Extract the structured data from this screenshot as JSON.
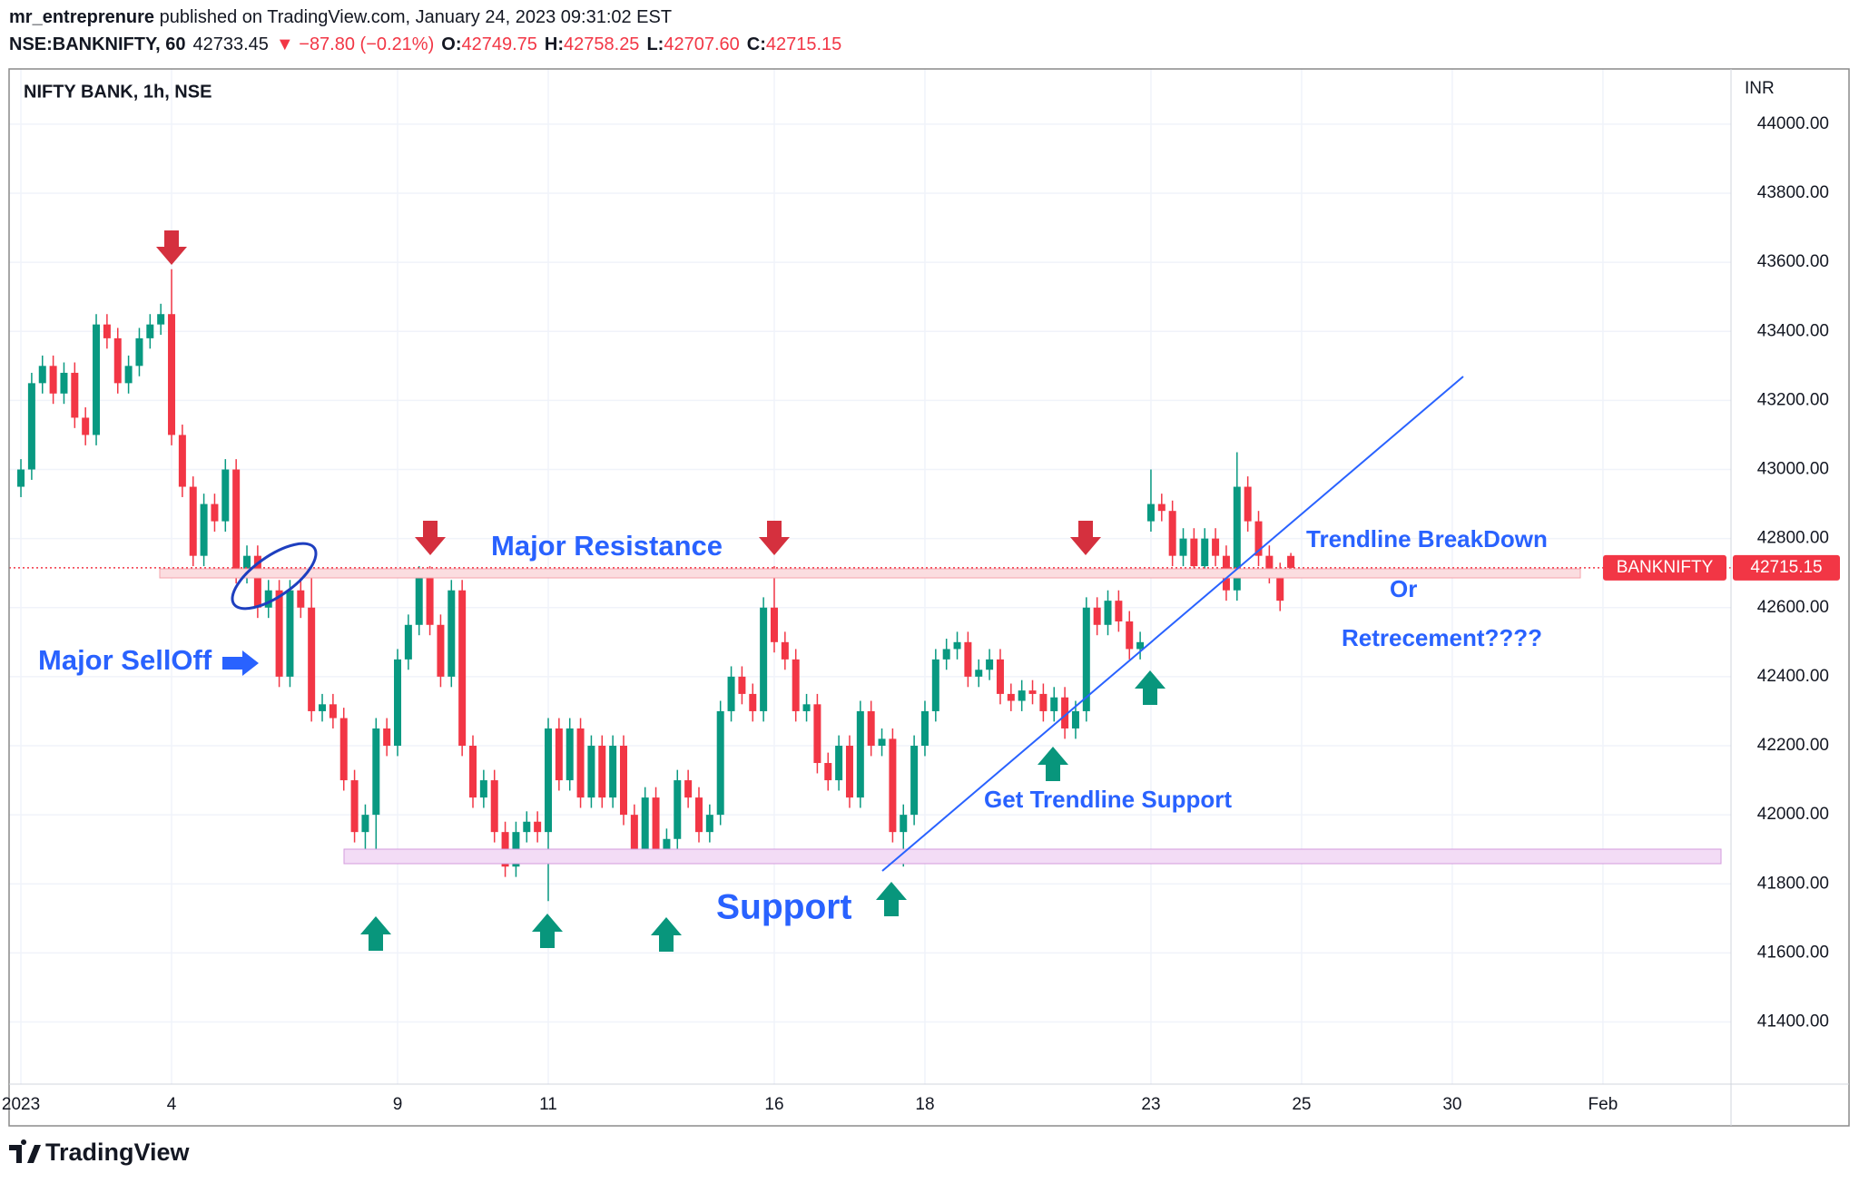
{
  "header": {
    "publisher": "mr_entreprenure",
    "published": " published on TradingView.com, January 24, 2023 09:31:02 EST",
    "symbol": "NSE:BANKNIFTY, 60",
    "price": "42733.45",
    "change": "▼ −87.80 (−0.21%)",
    "o_label": "O:",
    "o": "42749.75",
    "h_label": "H:",
    "h": "42758.25",
    "l_label": "L:",
    "l": "42707.60",
    "c_label": "C:",
    "c": "42715.15"
  },
  "footer": {
    "logo": "TradingView"
  },
  "chart_data": {
    "type": "candlestick",
    "title": "NIFTY BANK, 1h, NSE",
    "y_axis_label": "INR",
    "up_color": "#089981",
    "down_color": "#f23645",
    "grid": true,
    "open": [
      42950,
      43000,
      43250,
      43300,
      43220,
      43280,
      43150,
      43100,
      43420,
      43380,
      43250,
      43300,
      43380,
      43420,
      43450,
      43100,
      42950,
      42750,
      42900,
      42850,
      43000,
      42700,
      42750,
      42600,
      42650,
      42400,
      42650,
      42600,
      42300,
      42320,
      42280,
      42100,
      41950,
      42000,
      42250,
      42200,
      42450,
      42550,
      42700,
      42550,
      42400,
      42650,
      42200,
      42050,
      42100,
      41950,
      41850,
      41950,
      41980,
      41950,
      42250,
      42100,
      42250,
      42050,
      42200,
      42050,
      42200,
      42000,
      41900,
      42050,
      41900,
      41930,
      42100,
      42050,
      41950,
      42000,
      42300,
      42400,
      42350,
      42300,
      42600,
      42500,
      42450,
      42300,
      42320,
      42150,
      42100,
      42200,
      42050,
      42300,
      42200,
      42220,
      41950,
      42000,
      42200,
      42300,
      42450,
      42480,
      42500,
      42400,
      42420,
      42450,
      42350,
      42330,
      42360,
      42350,
      42300,
      42340,
      42250,
      42300,
      42600,
      42550,
      42620,
      42560,
      42480,
      42850,
      42900,
      42880,
      42750,
      42800,
      42720,
      42800,
      42750,
      42650,
      42950,
      42850,
      42750,
      42700,
      42749.75
    ],
    "high": [
      43030,
      43280,
      43330,
      43330,
      43310,
      43310,
      43180,
      43450,
      43450,
      43410,
      43330,
      43410,
      43450,
      43480,
      43580,
      43130,
      42980,
      42930,
      42930,
      43030,
      43030,
      42780,
      42780,
      42680,
      42680,
      42680,
      42680,
      42700,
      42350,
      42350,
      42310,
      42130,
      42030,
      42280,
      42280,
      42480,
      42580,
      42720,
      42720,
      42580,
      42680,
      42680,
      42230,
      42130,
      42130,
      41980,
      41980,
      42010,
      42010,
      42280,
      42280,
      42280,
      42280,
      42230,
      42230,
      42230,
      42230,
      42030,
      42080,
      42080,
      41960,
      42130,
      42130,
      42080,
      42030,
      42330,
      42430,
      42430,
      42380,
      42630,
      42720,
      42530,
      42480,
      42350,
      42350,
      42180,
      42230,
      42230,
      42330,
      42330,
      42250,
      42250,
      42030,
      42230,
      42330,
      42480,
      42510,
      42530,
      42530,
      42450,
      42480,
      42480,
      42380,
      42390,
      42390,
      42380,
      42370,
      42370,
      42330,
      42630,
      42630,
      42650,
      42650,
      42590,
      42530,
      43000,
      42930,
      42910,
      42830,
      42830,
      42830,
      42830,
      42780,
      43050,
      42980,
      42880,
      42780,
      42730,
      42758.25
    ],
    "low": [
      42920,
      42970,
      43220,
      43190,
      43190,
      43120,
      43070,
      43070,
      43350,
      43220,
      43220,
      43270,
      43350,
      43390,
      43070,
      42920,
      42720,
      42720,
      42820,
      42820,
      42670,
      42670,
      42570,
      42570,
      42370,
      42370,
      42570,
      42270,
      42270,
      42250,
      42070,
      41920,
      41880,
      41870,
      42170,
      42170,
      42420,
      42520,
      42520,
      42370,
      42370,
      42170,
      42020,
      42020,
      41920,
      41820,
      41820,
      41920,
      41920,
      41750,
      42070,
      42070,
      42020,
      42020,
      42020,
      42020,
      41970,
      41870,
      41870,
      41870,
      41870,
      41900,
      42020,
      41920,
      41920,
      41970,
      42270,
      42320,
      42270,
      42270,
      42470,
      42420,
      42270,
      42270,
      42120,
      42070,
      42070,
      42020,
      42020,
      42170,
      42170,
      41920,
      41850,
      41970,
      42170,
      42270,
      42420,
      42450,
      42370,
      42370,
      42390,
      42320,
      42300,
      42300,
      42320,
      42270,
      42270,
      42220,
      42220,
      42270,
      42520,
      42520,
      42530,
      42450,
      42450,
      42820,
      42850,
      42720,
      42720,
      42690,
      42690,
      42720,
      42620,
      42620,
      42820,
      42720,
      42670,
      42590,
      42707.6
    ],
    "close": [
      43000,
      43250,
      43300,
      43220,
      43280,
      43150,
      43100,
      43420,
      43380,
      43250,
      43300,
      43380,
      43420,
      43450,
      43100,
      42950,
      42750,
      42900,
      42850,
      43000,
      42700,
      42750,
      42600,
      42650,
      42400,
      42650,
      42600,
      42300,
      42320,
      42280,
      42100,
      41950,
      42000,
      42250,
      42200,
      42450,
      42550,
      42700,
      42550,
      42400,
      42650,
      42200,
      42050,
      42100,
      41950,
      41850,
      41950,
      41980,
      41950,
      42250,
      42100,
      42250,
      42050,
      42200,
      42050,
      42200,
      42000,
      41900,
      42050,
      41900,
      41930,
      42100,
      42050,
      41950,
      42000,
      42300,
      42400,
      42350,
      42300,
      42600,
      42500,
      42450,
      42300,
      42320,
      42150,
      42100,
      42200,
      42050,
      42300,
      42200,
      42220,
      41950,
      42000,
      42200,
      42300,
      42450,
      42480,
      42500,
      42400,
      42420,
      42450,
      42350,
      42330,
      42360,
      42350,
      42300,
      42340,
      42250,
      42300,
      42600,
      42550,
      42620,
      42560,
      42480,
      42500,
      42900,
      42880,
      42750,
      42800,
      42720,
      42800,
      42750,
      42650,
      42950,
      42850,
      42750,
      42700,
      42620,
      42715.15
    ],
    "xlim": [
      -1.1,
      158.9
    ],
    "xticks": [
      {
        "value": 0,
        "label": "2023"
      },
      {
        "value": 14,
        "label": "4"
      },
      {
        "value": 35,
        "label": "9"
      },
      {
        "value": 49,
        "label": "11"
      },
      {
        "value": 70,
        "label": "16"
      },
      {
        "value": 84,
        "label": "18"
      },
      {
        "value": 105,
        "label": "23"
      },
      {
        "value": 119,
        "label": "25"
      },
      {
        "value": 133,
        "label": "30"
      },
      {
        "value": 147,
        "label": "Feb"
      }
    ],
    "ylim": [
      41220,
      44160
    ],
    "yticks": [
      {
        "value": 41400,
        "label": "41400.00"
      },
      {
        "value": 41600,
        "label": "41600.00"
      },
      {
        "value": 41800,
        "label": "41800.00"
      },
      {
        "value": 42000,
        "label": "42000.00"
      },
      {
        "value": 42200,
        "label": "42200.00"
      },
      {
        "value": 42400,
        "label": "42400.00"
      },
      {
        "value": 42600,
        "label": "42600.00"
      },
      {
        "value": 42800,
        "label": "42800.00"
      },
      {
        "value": 43000,
        "label": "43000.00"
      },
      {
        "value": 43200,
        "label": "43200.00"
      },
      {
        "value": 43400,
        "label": "43400.00"
      },
      {
        "value": 43600,
        "label": "43600.00"
      },
      {
        "value": 43800,
        "label": "43800.00"
      },
      {
        "value": 44000,
        "label": "44000.00"
      }
    ],
    "last_price_label": "BANKNIFTY",
    "last_price": 42715.15,
    "annotations": [
      "Major Resistance",
      "Major SellOff",
      "Support",
      "Get Trendline Support",
      "Trendline BreakDown",
      "Or",
      "Retrecement????"
    ]
  }
}
